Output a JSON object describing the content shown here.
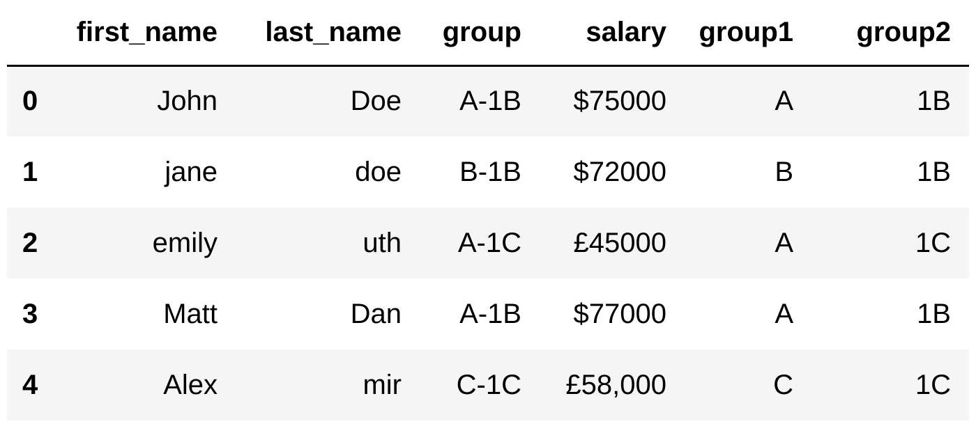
{
  "table": {
    "columns": [
      "",
      "first_name",
      "last_name",
      "group",
      "salary",
      "group1",
      "group2"
    ],
    "rows": [
      {
        "index": "0",
        "first_name": "John",
        "last_name": "Doe",
        "group": "A-1B",
        "salary": "$75000",
        "group1": "A",
        "group2": "1B"
      },
      {
        "index": "1",
        "first_name": "jane",
        "last_name": "doe",
        "group": "B-1B",
        "salary": "$72000",
        "group1": "B",
        "group2": "1B"
      },
      {
        "index": "2",
        "first_name": "emily",
        "last_name": "uth",
        "group": "A-1C",
        "salary": "£45000",
        "group1": "A",
        "group2": "1C"
      },
      {
        "index": "3",
        "first_name": "Matt",
        "last_name": "Dan",
        "group": "A-1B",
        "salary": "$77000",
        "group1": "A",
        "group2": "1B"
      },
      {
        "index": "4",
        "first_name": "Alex",
        "last_name": "mir",
        "group": "C-1C",
        "salary": "£58,000",
        "group1": "C",
        "group2": "1C"
      }
    ]
  },
  "colors": {
    "stripe": "#f5f5f5",
    "header_rule": "#000000",
    "text": "#000000"
  }
}
